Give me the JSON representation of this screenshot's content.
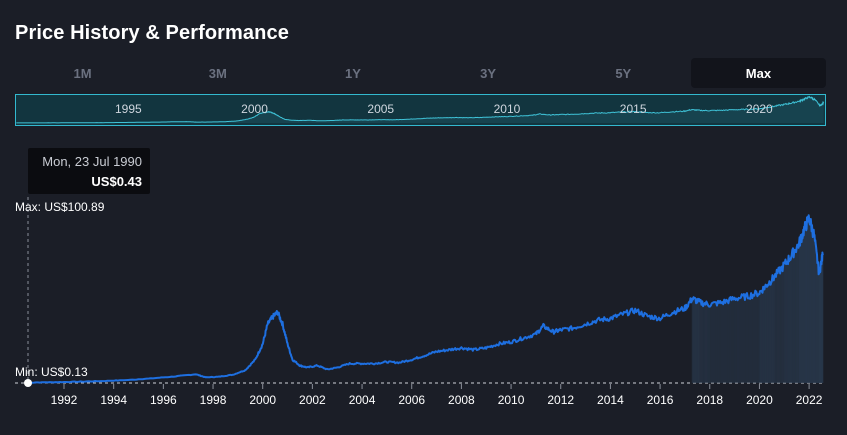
{
  "header": {
    "title": "Price History & Performance"
  },
  "range_tabs": [
    {
      "label": "1M",
      "active": false
    },
    {
      "label": "3M",
      "active": false
    },
    {
      "label": "1Y",
      "active": false
    },
    {
      "label": "3Y",
      "active": false
    },
    {
      "label": "5Y",
      "active": false
    },
    {
      "label": "Max",
      "active": true
    }
  ],
  "navigator": {
    "year_labels": [
      "1995",
      "2000",
      "2005",
      "2010",
      "2015",
      "2020"
    ]
  },
  "tooltip": {
    "date": "Mon, 23 Jul 1990",
    "price": "US$0.43"
  },
  "annotations": {
    "max_label": "Max: US$100.89",
    "min_label": "Min: US$0.13"
  },
  "colors": {
    "line": "#1e6fe0",
    "navigator_line": "#3fc3d8",
    "navigator_bg": "#12353f",
    "background": "#1b1e27"
  },
  "chart_data": {
    "type": "line",
    "title": "",
    "xlabel": "",
    "ylabel": "",
    "x_ticks": [
      "1992",
      "1994",
      "1996",
      "1998",
      "2000",
      "2002",
      "2004",
      "2006",
      "2008",
      "2010",
      "2012",
      "2014",
      "2016",
      "2018",
      "2020",
      "2022"
    ],
    "xlim": [
      1990.55,
      2022.6
    ],
    "ylim": [
      0.13,
      100.89
    ],
    "max": 100.89,
    "min": 0.13,
    "series": [
      {
        "x": [
          1990.56,
          1991.5,
          1992.5,
          1993.5,
          1994.5,
          1995.5,
          1996.5,
          1997.3,
          1997.7,
          1998.2,
          1998.8,
          1999.3,
          1999.7,
          2000.0,
          2000.2,
          2000.4,
          2000.6,
          2000.8,
          2001.0,
          2001.2,
          2001.5,
          2001.8,
          2002.2,
          2002.6,
          2003.0,
          2003.5,
          2004.0,
          2004.5,
          2005.0,
          2005.5,
          2006.0,
          2006.5,
          2007.0,
          2007.5,
          2008.0,
          2008.5,
          2009.0,
          2009.5,
          2010.0,
          2010.5,
          2011.0,
          2011.3,
          2011.7,
          2012.0,
          2012.5,
          2013.0,
          2013.5,
          2014.0,
          2014.5,
          2015.0,
          2015.5,
          2016.0,
          2016.5,
          2017.0,
          2017.3,
          2017.6,
          2018.0,
          2018.5,
          2019.0,
          2019.5,
          2020.0,
          2020.3,
          2020.6,
          2021.0,
          2021.3,
          2021.6,
          2021.8,
          2022.0,
          2022.2,
          2022.4,
          2022.55
        ],
        "y": [
          0.43,
          0.6,
          0.9,
          1.3,
          1.9,
          2.9,
          4.2,
          5.5,
          3.6,
          3.9,
          5.2,
          8.0,
          14.4,
          24.0,
          36.1,
          40.4,
          43.3,
          36.1,
          24.0,
          14.4,
          10.8,
          9.6,
          10.8,
          8.4,
          9.6,
          12.0,
          12.0,
          12.0,
          13.0,
          12.6,
          14.4,
          16.8,
          19.3,
          20.4,
          21.6,
          20.4,
          21.6,
          24.0,
          25.2,
          27.6,
          30.0,
          34.9,
          31.3,
          32.5,
          33.7,
          36.1,
          38.5,
          39.6,
          42.1,
          44.5,
          40.9,
          39.6,
          43.3,
          45.7,
          51.7,
          49.3,
          48.1,
          49.3,
          51.7,
          53.0,
          55.3,
          60.1,
          64.9,
          72.1,
          78.2,
          85.4,
          93.8,
          100.9,
          90.2,
          67.3,
          78.2
        ]
      }
    ]
  }
}
